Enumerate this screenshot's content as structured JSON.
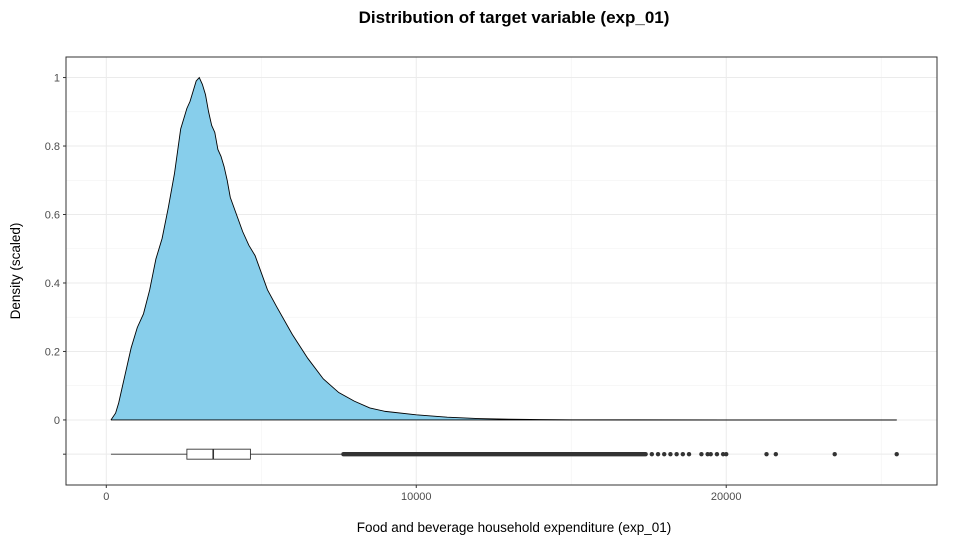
{
  "chart_data": {
    "type": "area",
    "title": "Distribution of target variable (exp_01)",
    "xlabel": "Food and beverage household expenditure (exp_01)",
    "ylabel": "Density (scaled)",
    "xlim": [
      -1300,
      26800
    ],
    "ylim": [
      -0.19,
      1.06
    ],
    "x_ticks": [
      0,
      10000,
      20000
    ],
    "x_tick_labels": [
      "0",
      "10000",
      "20000"
    ],
    "y_ticks": [
      0,
      0.2,
      0.4,
      0.6,
      0.8,
      1
    ],
    "y_tick_labels": [
      "0",
      "0.2",
      "0.4",
      "0.6",
      "0.8",
      "1"
    ],
    "grid": true,
    "fill_color": "#87CEEB",
    "line_color": "#000000",
    "density": {
      "x": [
        150,
        300,
        400,
        500,
        600,
        700,
        800,
        900,
        1000,
        1200,
        1400,
        1600,
        1800,
        2000,
        2200,
        2400,
        2600,
        2700,
        2800,
        2900,
        3000,
        3100,
        3200,
        3300,
        3400,
        3500,
        3600,
        3700,
        3800,
        3900,
        4000,
        4200,
        4400,
        4600,
        4800,
        5000,
        5200,
        5500,
        6000,
        6500,
        7000,
        7500,
        8000,
        8500,
        9000,
        10000,
        11000,
        12000,
        13000,
        14000,
        15000,
        17000,
        20000,
        23000,
        25500
      ],
      "y": [
        0.0,
        0.02,
        0.05,
        0.09,
        0.13,
        0.17,
        0.21,
        0.24,
        0.27,
        0.31,
        0.38,
        0.47,
        0.53,
        0.62,
        0.72,
        0.85,
        0.91,
        0.93,
        0.96,
        0.99,
        1.0,
        0.98,
        0.95,
        0.9,
        0.86,
        0.84,
        0.79,
        0.77,
        0.74,
        0.7,
        0.65,
        0.6,
        0.55,
        0.51,
        0.48,
        0.43,
        0.38,
        0.33,
        0.25,
        0.18,
        0.12,
        0.08,
        0.055,
        0.035,
        0.025,
        0.015,
        0.008,
        0.004,
        0.002,
        0.001,
        0.0005,
        0.0002,
        0.0001,
        0.0001,
        0.0
      ]
    },
    "boxplot": {
      "y": -0.1,
      "whisker_low": 150,
      "q1": 2600,
      "median": 3450,
      "q3": 4650,
      "whisker_high": 7650,
      "outlier_range": [
        7650,
        17400
      ],
      "outliers": [
        17600,
        17800,
        18000,
        18200,
        18400,
        18600,
        18800,
        19200,
        19400,
        19500,
        19700,
        19900,
        20000,
        21300,
        21600,
        23500,
        25500
      ]
    }
  }
}
